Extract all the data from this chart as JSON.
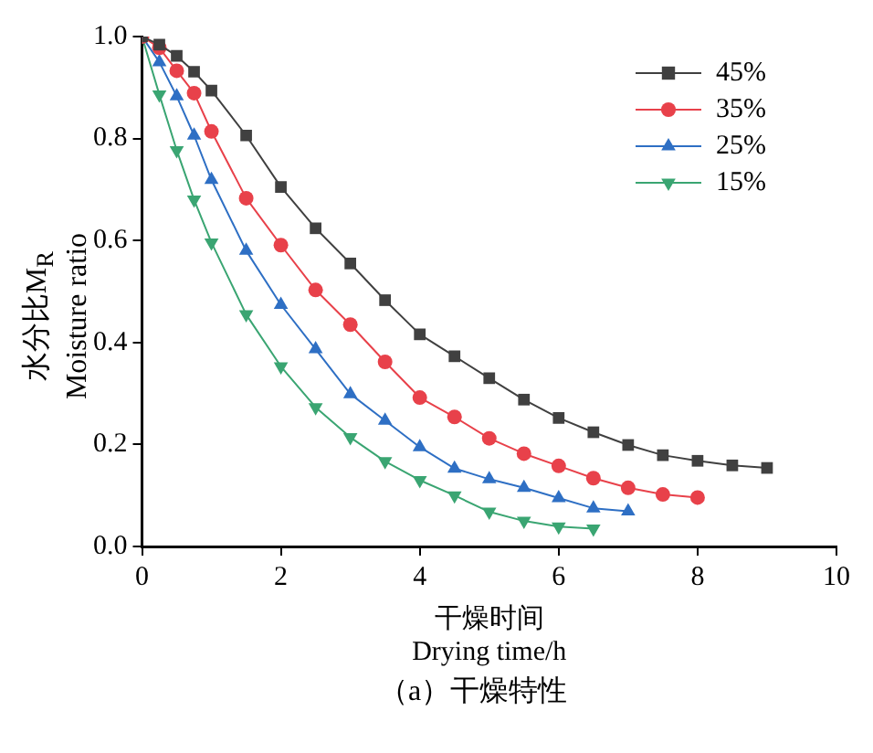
{
  "chart_data": {
    "type": "line",
    "xlabel": "干燥时间\nDrying time/h",
    "ylabel": "水分比M$_{R}$\nMoisture ratio",
    "annotations": [
      "（a）干燥特性"
    ],
    "xlim": [
      0,
      10
    ],
    "xticks": [
      0,
      2,
      4,
      6,
      8,
      10
    ],
    "ylim": [
      0,
      1.0
    ],
    "yticks": [
      {
        "value": 0,
        "label": "0.0"
      },
      {
        "value": 0.2,
        "label": "0.2"
      },
      {
        "value": 0.4,
        "label": "0.4"
      },
      {
        "value": 0.6,
        "label": "0.6"
      },
      {
        "value": 0.8,
        "label": "0.8"
      },
      {
        "value": 1.0,
        "label": "1.0"
      }
    ],
    "grid": false,
    "legend": "top right",
    "line_style": "solid",
    "series": [
      {
        "name": "45%",
        "color": "#404040",
        "marker": "square",
        "x": [
          0,
          0.25,
          0.5,
          0.75,
          1,
          1.5,
          2,
          2.5,
          3,
          3.5,
          4,
          4.5,
          5,
          5.5,
          6,
          6.5,
          7,
          7.5,
          8,
          8.5,
          9
        ],
        "values": [
          1.0,
          0.984,
          0.962,
          0.931,
          0.894,
          0.806,
          0.705,
          0.624,
          0.555,
          0.483,
          0.416,
          0.373,
          0.33,
          0.288,
          0.252,
          0.224,
          0.199,
          0.179,
          0.168,
          0.159,
          0.154
        ]
      },
      {
        "name": "35%",
        "color": "#e8414a",
        "marker": "circle",
        "x": [
          0,
          0.25,
          0.5,
          0.75,
          1,
          1.5,
          2,
          2.5,
          3,
          3.5,
          4,
          4.5,
          5,
          5.5,
          6,
          6.5,
          7,
          7.5,
          8
        ],
        "values": [
          1.0,
          0.978,
          0.933,
          0.889,
          0.814,
          0.683,
          0.591,
          0.503,
          0.435,
          0.362,
          0.292,
          0.254,
          0.212,
          0.182,
          0.158,
          0.134,
          0.115,
          0.102,
          0.096
        ]
      },
      {
        "name": "25%",
        "color": "#2e6fc4",
        "marker": "triangle",
        "x": [
          0,
          0.25,
          0.5,
          0.75,
          1,
          1.5,
          2,
          2.5,
          3,
          3.5,
          4,
          4.5,
          5,
          5.5,
          6,
          6.5,
          7
        ],
        "values": [
          1.0,
          0.95,
          0.883,
          0.806,
          0.719,
          0.58,
          0.474,
          0.387,
          0.299,
          0.247,
          0.195,
          0.153,
          0.132,
          0.115,
          0.095,
          0.075,
          0.069
        ]
      },
      {
        "name": "15%",
        "color": "#3aa572",
        "marker": "triangle-down",
        "x": [
          0,
          0.25,
          0.5,
          0.75,
          1,
          1.5,
          2,
          2.5,
          3,
          3.5,
          4,
          4.5,
          5,
          5.5,
          6,
          6.5
        ],
        "values": [
          1.0,
          0.886,
          0.777,
          0.68,
          0.596,
          0.455,
          0.353,
          0.273,
          0.214,
          0.167,
          0.13,
          0.1,
          0.068,
          0.05,
          0.039,
          0.035
        ]
      }
    ]
  }
}
